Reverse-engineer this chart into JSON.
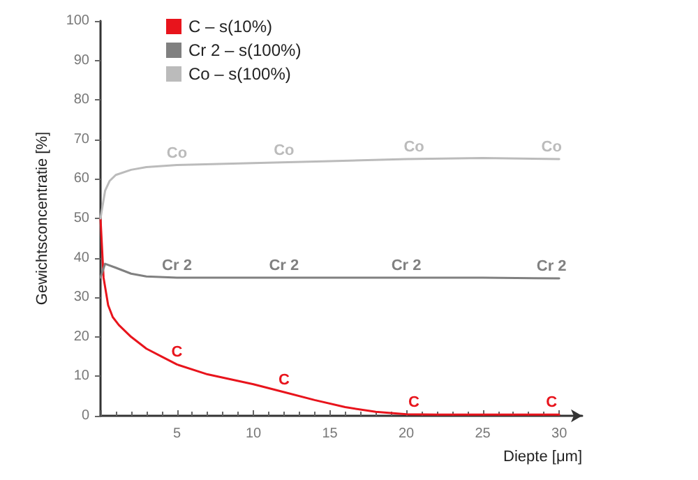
{
  "chart_data": {
    "type": "line",
    "xlabel": "Diepte [μm]",
    "ylabel": "Gewichtsconcentratie [%]",
    "xlim": [
      0,
      31.5
    ],
    "xticks": [
      {
        "value": 0,
        "label": null
      },
      5,
      10,
      15,
      20,
      25,
      30
    ],
    "ylim": [
      0,
      100
    ],
    "yticks": [
      0,
      10,
      20,
      30,
      40,
      50,
      60,
      70,
      80,
      90,
      100
    ],
    "grid": false,
    "legend": "top left",
    "marker": "none",
    "line_style": "solid",
    "series": [
      {
        "name": "C – s(10%)",
        "color": "#e8141c",
        "x": [
          0,
          0.2,
          0.5,
          0.8,
          1.2,
          2,
          3,
          4,
          5,
          7,
          10,
          12,
          14,
          16,
          18,
          20,
          22,
          25,
          30
        ],
        "values": [
          50,
          35,
          28,
          25,
          23,
          20,
          17,
          15,
          13,
          10.5,
          8,
          6,
          4,
          2.2,
          1,
          0.4,
          0.3,
          0.3,
          0.3
        ]
      },
      {
        "name": "Cr 2 – s(100%)",
        "color": "#808080",
        "x": [
          0,
          0.3,
          1,
          2,
          3,
          5,
          10,
          15,
          20,
          25,
          30
        ],
        "values": [
          35,
          38.5,
          37.5,
          36,
          35.3,
          35,
          35,
          35,
          35,
          35,
          34.8
        ]
      },
      {
        "name": "Co – s(100%)",
        "color": "#bbbbbb",
        "x": [
          0,
          0.3,
          0.6,
          1,
          2,
          3,
          5,
          10,
          15,
          20,
          25,
          30
        ],
        "values": [
          50,
          57,
          59.5,
          61,
          62.3,
          63,
          63.5,
          64,
          64.5,
          65,
          65.3,
          65
        ]
      }
    ],
    "annotations": [
      {
        "text": "Co",
        "x": 5,
        "y": 63.5
      },
      {
        "text": "Co",
        "x": 12,
        "y": 64.2
      },
      {
        "text": "Co",
        "x": 20.5,
        "y": 65
      },
      {
        "text": "Co",
        "x": 29.5,
        "y": 65
      },
      {
        "text": "Cr 2",
        "x": 5,
        "y": 35
      },
      {
        "text": "Cr 2",
        "x": 12,
        "y": 35
      },
      {
        "text": "Cr 2",
        "x": 20,
        "y": 35
      },
      {
        "text": "Cr 2",
        "x": 29.5,
        "y": 34.8
      },
      {
        "text": "C",
        "x": 5,
        "y": 13
      },
      {
        "text": "C",
        "x": 12,
        "y": 6
      },
      {
        "text": "C",
        "x": 20.5,
        "y": 0.4
      },
      {
        "text": "C",
        "x": 29.5,
        "y": 0.3
      }
    ]
  }
}
